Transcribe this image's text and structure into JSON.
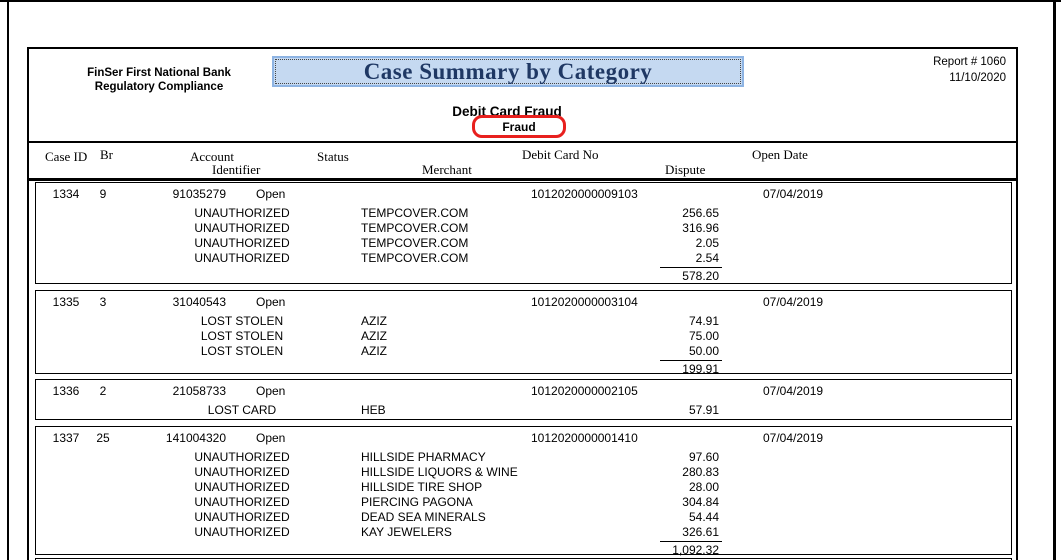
{
  "header": {
    "bank_line1": "FinSer First National Bank",
    "bank_line2": "Regulatory Compliance",
    "title": "Case Summary by Category",
    "report_number": "Report # 1060",
    "report_date": "11/10/2020",
    "category": "Debit Card Fraud",
    "subcategory": "Fraud"
  },
  "columns": {
    "case_id": "Case ID",
    "br": "Br",
    "account": "Account",
    "identifier": "Identifier",
    "status": "Status",
    "merchant": "Merchant",
    "debit_card_no": "Debit Card No",
    "dispute": "Dispute",
    "open_date": "Open Date"
  },
  "cases": [
    {
      "case_id": "1334",
      "br": "9",
      "account": "91035279",
      "status": "Open",
      "debit_card_no": "1012020000009103",
      "open_date": "07/04/2019",
      "disputes": [
        {
          "type": "UNAUTHORIZED",
          "merchant": "TEMPCOVER.COM",
          "amount": "256.65"
        },
        {
          "type": "UNAUTHORIZED",
          "merchant": "TEMPCOVER.COM",
          "amount": "316.96"
        },
        {
          "type": "UNAUTHORIZED",
          "merchant": "TEMPCOVER.COM",
          "amount": "2.05"
        },
        {
          "type": "UNAUTHORIZED",
          "merchant": "TEMPCOVER.COM",
          "amount": "2.54"
        }
      ],
      "total": "578.20"
    },
    {
      "case_id": "1335",
      "br": "3",
      "account": "31040543",
      "status": "Open",
      "debit_card_no": "1012020000003104",
      "open_date": "07/04/2019",
      "disputes": [
        {
          "type": "LOST STOLEN",
          "merchant": "AZIZ",
          "amount": "74.91"
        },
        {
          "type": "LOST STOLEN",
          "merchant": "AZIZ",
          "amount": "75.00"
        },
        {
          "type": "LOST STOLEN",
          "merchant": "AZIZ",
          "amount": "50.00"
        }
      ],
      "total": "199.91"
    },
    {
      "case_id": "1336",
      "br": "2",
      "account": "21058733",
      "status": "Open",
      "debit_card_no": "1012020000002105",
      "open_date": "07/04/2019",
      "disputes": [
        {
          "type": "LOST CARD",
          "merchant": "HEB",
          "amount": "57.91"
        }
      ],
      "total": null
    },
    {
      "case_id": "1337",
      "br": "25",
      "account": "141004320",
      "status": "Open",
      "debit_card_no": "1012020000001410",
      "open_date": "07/04/2019",
      "disputes": [
        {
          "type": "UNAUTHORIZED",
          "merchant": "HILLSIDE PHARMACY",
          "amount": "97.60"
        },
        {
          "type": "UNAUTHORIZED",
          "merchant": "HILLSIDE LIQUORS & WINE",
          "amount": "280.83"
        },
        {
          "type": "UNAUTHORIZED",
          "merchant": "HILLSIDE TIRE SHOP",
          "amount": "28.00"
        },
        {
          "type": "UNAUTHORIZED",
          "merchant": "PIERCING PAGONA",
          "amount": "304.84"
        },
        {
          "type": "UNAUTHORIZED",
          "merchant": "DEAD SEA MINERALS",
          "amount": "54.44"
        },
        {
          "type": "UNAUTHORIZED",
          "merchant": "KAY JEWELERS",
          "amount": "326.61"
        }
      ],
      "total": "1,092.32"
    }
  ],
  "colors": {
    "title_bg": "#c5d9f1",
    "title_border": "#8eb4e3",
    "title_text": "#1f3864",
    "highlight_red": "#e8201e"
  }
}
